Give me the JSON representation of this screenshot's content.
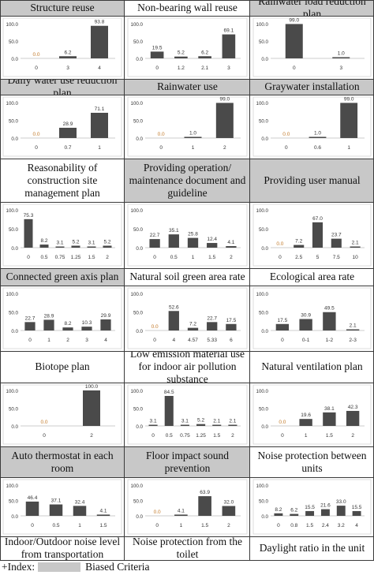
{
  "colors": {
    "bar": "#4a4a4a",
    "biased_title_bg": "#c8c8c8",
    "grid": "#3a3a3a",
    "axis_text": "#333333",
    "zero_label": "#c27a2a"
  },
  "legend": {
    "prefix": "+Index:",
    "label": "Biased Criteria"
  },
  "chart_data": [
    {
      "type": "bar",
      "title": "Structure reuse",
      "biased": true,
      "categories": [
        "0",
        "3",
        "4"
      ],
      "values": [
        0.0,
        6.2,
        93.8
      ],
      "ytick": "100.0"
    },
    {
      "type": "bar",
      "title": "Non-bearing wall reuse",
      "biased": false,
      "categories": [
        "0",
        "1.2",
        "2.1",
        "3"
      ],
      "values": [
        19.5,
        5.2,
        6.2,
        69.1
      ],
      "ytick": "100.0"
    },
    {
      "type": "bar",
      "title": "Rainwater load reduction plan",
      "biased": true,
      "categories": [
        "0",
        "3"
      ],
      "values": [
        99.0,
        1.0
      ],
      "ytick": "100.0"
    },
    {
      "type": "bar",
      "title": "Daily water use reduction plan",
      "biased": true,
      "categories": [
        "0",
        "0.7",
        "1"
      ],
      "values": [
        0.0,
        28.9,
        71.1
      ],
      "ytick": "100.0"
    },
    {
      "type": "bar",
      "title": "Rainwater use",
      "biased": true,
      "categories": [
        "0",
        "1",
        "2"
      ],
      "values": [
        0.0,
        1.0,
        99.0
      ],
      "ytick": "100.0"
    },
    {
      "type": "bar",
      "title": "Graywater installation",
      "biased": true,
      "categories": [
        "0",
        "0.6",
        "1"
      ],
      "values": [
        0.0,
        1.0,
        99.0
      ],
      "ytick": "100.0"
    },
    {
      "type": "bar",
      "title": "Reasonability of construction site management plan",
      "biased": false,
      "categories": [
        "0",
        "0.5",
        "0.75",
        "1.25",
        "1.5",
        "2"
      ],
      "values": [
        75.3,
        8.2,
        3.1,
        5.2,
        3.1,
        5.2
      ],
      "ytick": "100.0"
    },
    {
      "type": "bar",
      "title": "Providing operation/ maintenance document and guideline",
      "biased": true,
      "categories": [
        "0",
        "0.5",
        "1",
        "1.5",
        "2"
      ],
      "values": [
        22.7,
        35.1,
        25.8,
        12.4,
        4.1
      ],
      "ytick": "100.0"
    },
    {
      "type": "bar",
      "title": "Providing user manual",
      "biased": true,
      "categories": [
        "0",
        "2.5",
        "5",
        "7.5",
        "10"
      ],
      "values": [
        0.0,
        7.2,
        67.0,
        23.7,
        2.1
      ],
      "ytick": "100.0"
    },
    {
      "type": "bar",
      "title": "Connected green axis plan",
      "biased": true,
      "categories": [
        "0",
        "1",
        "2",
        "3",
        "4"
      ],
      "values": [
        22.7,
        28.9,
        8.2,
        10.3,
        29.9
      ],
      "ytick": "100.0"
    },
    {
      "type": "bar",
      "title": "Natural soil green area rate",
      "biased": false,
      "categories": [
        "0",
        "4",
        "4.57",
        "5.33",
        "6"
      ],
      "values": [
        0.0,
        52.6,
        7.2,
        22.7,
        17.5
      ],
      "ytick": "100.0"
    },
    {
      "type": "bar",
      "title": "Ecological area rate",
      "biased": false,
      "categories": [
        "0",
        "0-1",
        "1-2",
        "2-3"
      ],
      "values": [
        17.5,
        30.9,
        49.5,
        2.1
      ],
      "ytick": "100.0"
    },
    {
      "type": "bar",
      "title": "Biotope plan",
      "biased": false,
      "categories": [
        "0",
        "2"
      ],
      "values": [
        0.0,
        100.0
      ],
      "ytick": "100.0"
    },
    {
      "type": "bar",
      "title": "Low emission material use for indoor air pollution substance",
      "biased": false,
      "categories": [
        "0",
        "0.5",
        "0.75",
        "1.25",
        "1.5",
        "2"
      ],
      "values": [
        3.1,
        84.5,
        3.1,
        5.2,
        2.1,
        2.1
      ],
      "ytick": "100.0"
    },
    {
      "type": "bar",
      "title": "Natural ventilation plan",
      "biased": false,
      "categories": [
        "0",
        "1",
        "1.5",
        "2"
      ],
      "values": [
        0.0,
        19.6,
        38.1,
        42.3
      ],
      "ytick": "100.0"
    },
    {
      "type": "bar",
      "title": "Auto thermostat in each room",
      "biased": true,
      "categories": [
        "0",
        "0.5",
        "1",
        "1.5"
      ],
      "values": [
        46.4,
        37.1,
        32.4,
        4.1
      ],
      "ytick": "100.0"
    },
    {
      "type": "bar",
      "title": "Floor impact sound prevention",
      "biased": true,
      "categories": [
        "0",
        "1",
        "1.5",
        "2"
      ],
      "values": [
        0.0,
        4.1,
        63.9,
        32.0
      ],
      "ytick": "100.0"
    },
    {
      "type": "bar",
      "title": "Noise protection between units",
      "biased": false,
      "categories": [
        "0",
        "0.8",
        "1.5",
        "2.4",
        "3.2",
        "4"
      ],
      "values": [
        8.2,
        6.2,
        15.5,
        21.6,
        33.0,
        15.5
      ],
      "ytick": "100.0"
    },
    {
      "type": "label",
      "title": "Indoor/Outdoor noise level from transportation",
      "biased": false
    },
    {
      "type": "label",
      "title": "Noise protection from the toilet",
      "biased": false
    },
    {
      "type": "label",
      "title": "Daylight ratio in the unit",
      "biased": false
    }
  ]
}
